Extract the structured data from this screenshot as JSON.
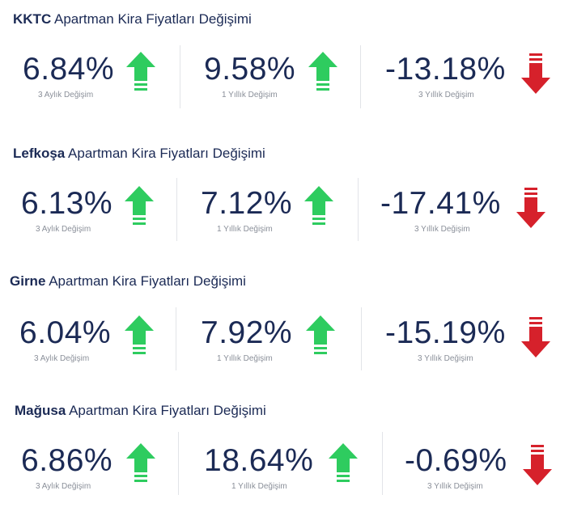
{
  "sections": [
    {
      "region": "KKTC",
      "rest": "Apartman Kira Fiyatları Değişimi",
      "stats": [
        {
          "value": "6.84%",
          "label": "3 Aylık Değişim",
          "direction": "up"
        },
        {
          "value": "9.58%",
          "label": "1 Yıllık Değişim",
          "direction": "up"
        },
        {
          "value": "-13.18%",
          "label": "3 Yıllık Değişim",
          "direction": "down"
        }
      ]
    },
    {
      "region": "Lefkoşa",
      "rest": "Apartman Kira Fiyatları Değişimi",
      "stats": [
        {
          "value": "6.13%",
          "label": "3 Aylık Değişim",
          "direction": "up"
        },
        {
          "value": "7.12%",
          "label": "1 Yıllık Değişim",
          "direction": "up"
        },
        {
          "value": "-17.41%",
          "label": "3 Yıllık Değişim",
          "direction": "down"
        }
      ]
    },
    {
      "region": "Girne",
      "rest": "Apartman Kira Fiyatları Değişimi",
      "stats": [
        {
          "value": "6.04%",
          "label": "3 Aylık Değişim",
          "direction": "up"
        },
        {
          "value": "7.92%",
          "label": "1 Yıllık Değişim",
          "direction": "up"
        },
        {
          "value": "-15.19%",
          "label": "3 Yıllık Değişim",
          "direction": "down"
        }
      ]
    },
    {
      "region": "Mağusa",
      "rest": "Apartman Kira Fiyatları Değişimi",
      "stats": [
        {
          "value": "6.86%",
          "label": "3 Aylık Değişim",
          "direction": "up"
        },
        {
          "value": "18.64%",
          "label": "1 Yıllık Değişim",
          "direction": "up"
        },
        {
          "value": "-0.69%",
          "label": "3 Yıllık Değişim",
          "direction": "down"
        }
      ]
    }
  ],
  "colors": {
    "up": "#2ecc5f",
    "down": "#d6212b",
    "text": "#1b2a55",
    "label": "#8a8f99"
  },
  "icons": {
    "up": "arrow-up-icon",
    "down": "arrow-down-icon"
  }
}
